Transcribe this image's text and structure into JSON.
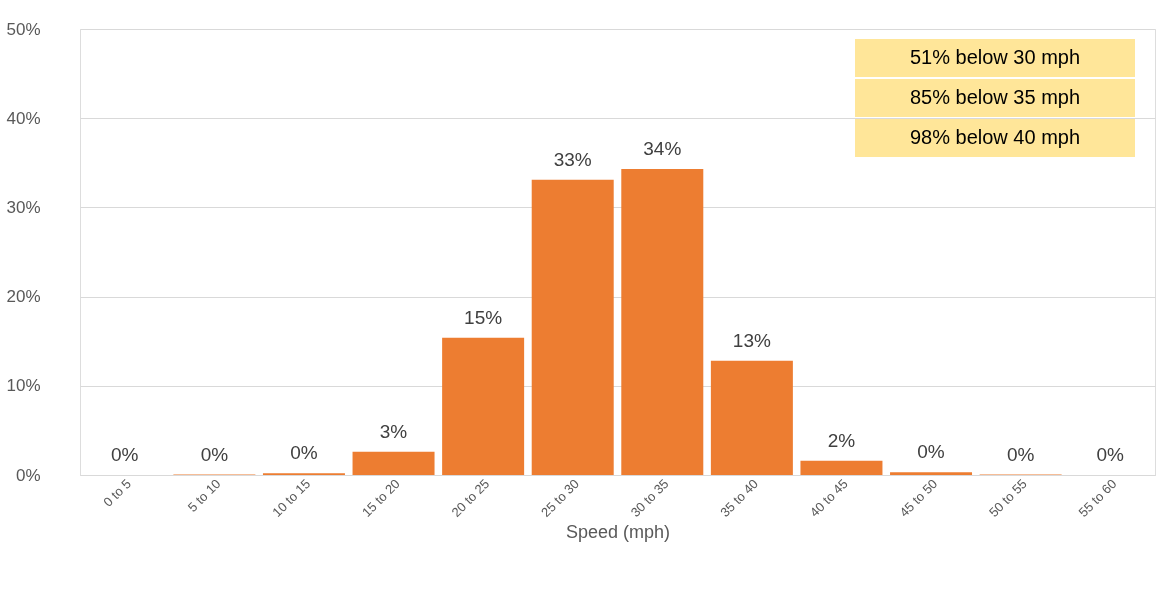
{
  "chart_data": {
    "type": "bar",
    "xlabel": "Speed (mph)",
    "categories": [
      "0 to 5",
      "5 to 10",
      "10 to 15",
      "15 to 20",
      "20 to 25",
      "25 to 30",
      "30 to 35",
      "35 to 40",
      "40 to 45",
      "45 to 50",
      "50 to 55",
      "55 to 60"
    ],
    "values": [
      0,
      0.05,
      0.2,
      2.6,
      15.4,
      33.1,
      34.3,
      12.8,
      1.6,
      0.3,
      0.05,
      0
    ],
    "value_labels": [
      "0%",
      "0%",
      "0%",
      "3%",
      "15%",
      "33%",
      "34%",
      "13%",
      "2%",
      "0%",
      "0%",
      "0%"
    ],
    "color": "#ed7d31",
    "ylim": [
      0,
      50
    ],
    "yticks": [
      {
        "value": 0,
        "label": "0%"
      },
      {
        "value": 10,
        "label": "10%"
      },
      {
        "value": 20,
        "label": "20%"
      },
      {
        "value": 30,
        "label": "30%"
      },
      {
        "value": 40,
        "label": "40%"
      },
      {
        "value": 50,
        "label": "50%"
      }
    ],
    "grid": "y",
    "annotations": [
      "51% below 30 mph",
      "85% below 35 mph",
      "98% below 40 mph"
    ]
  }
}
